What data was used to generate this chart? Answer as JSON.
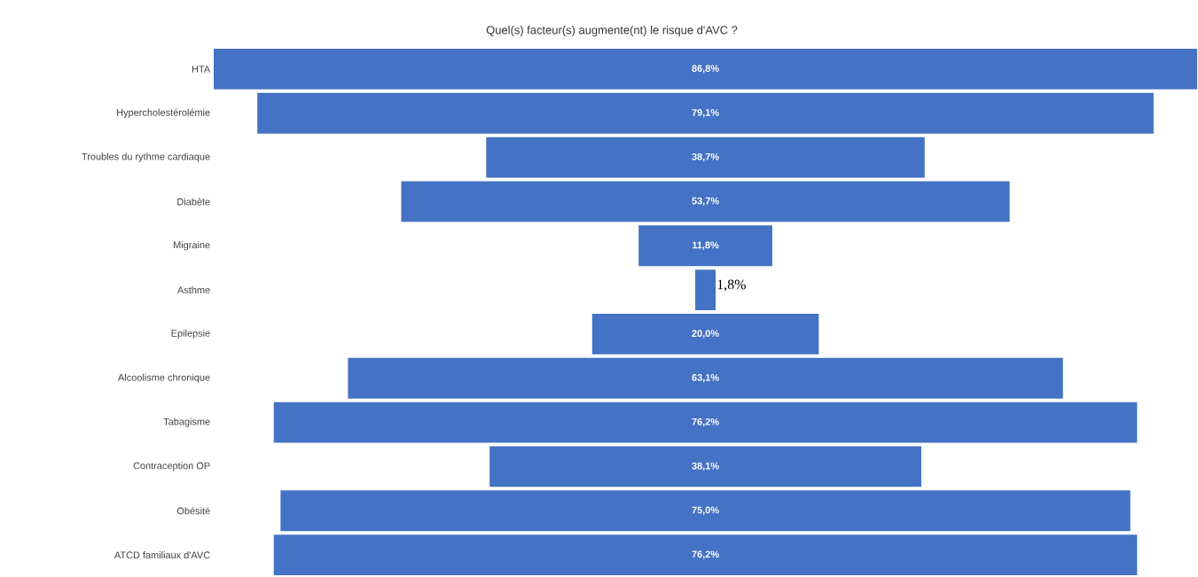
{
  "chart_data": {
    "type": "other",
    "title": "Quel(s) facteur(s) augmente(nt) le risque d'AVC ?",
    "categories": [
      "HTA",
      "Hypercholestérolémie",
      "Troubles du rythme cardiaque",
      "Diabète",
      "Migraine",
      "Asthme",
      "Epilepsie",
      "Alcoolisme chronique",
      "Tabagisme",
      "Contraception OP",
      "Obésité",
      "ATCD familiaux d'AVC"
    ],
    "values": [
      86.8,
      79.1,
      38.7,
      53.7,
      11.8,
      1.8,
      20.0,
      63.1,
      76.2,
      38.1,
      75.0,
      76.2
    ],
    "value_labels": [
      "86,8%",
      "79,1%",
      "38,7%",
      "53,7%",
      "11,8%",
      "1,8%",
      "20,0%",
      "63,1%",
      "76,2%",
      "38,1%",
      "75,0%",
      "76,2%"
    ],
    "color": "#4472c4"
  }
}
